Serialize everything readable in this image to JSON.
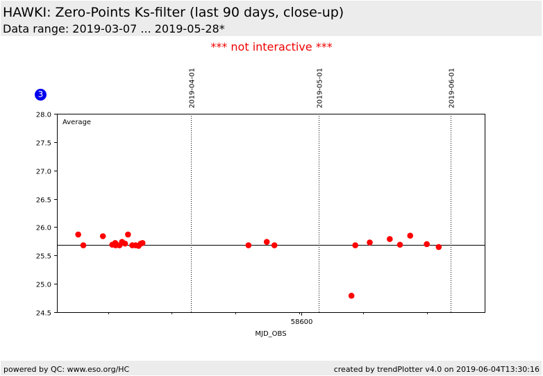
{
  "header": {
    "title": "HAWKI: Zero-Points Ks-filter (last 90 days, close-up)",
    "subtitle": "Data range: 2019-03-07 ... 2019-05-28*"
  },
  "notice": "*** not interactive ***",
  "badge": "3",
  "footer": {
    "left": "powered by QC: www.eso.org/HC",
    "right": "created by trendPlotter v4.0 on 2019-06-04T13:30:16"
  },
  "colors": {
    "points": "#ff0000",
    "badge": "#0000ee",
    "notice": "#ee0000",
    "header_bg": "#ececec"
  },
  "chart_data": {
    "type": "scatter",
    "xlabel": "MJD_OBS",
    "ylabel": "",
    "xlim": [
      58542.5,
      58643.0
    ],
    "ylim": [
      24.5,
      28.0
    ],
    "yticks": [
      24.5,
      25.0,
      25.5,
      26.0,
      26.5,
      27.0,
      27.5,
      28.0
    ],
    "xticks_minor": [
      58554.5,
      58569.5,
      58584.5,
      58599.5,
      58614.5,
      58629.5
    ],
    "xtick_labels": [
      {
        "value": 58600,
        "label": "58600"
      }
    ],
    "date_markers": [
      {
        "value": 58574.0,
        "label": "2019-04-01"
      },
      {
        "value": 58604.0,
        "label": "2019-05-01"
      },
      {
        "value": 58635.0,
        "label": "2019-06-01"
      }
    ],
    "average": {
      "label": "Average",
      "value": 25.69
    },
    "series": [
      {
        "points": [
          {
            "x": 58547.5,
            "y": 25.87
          },
          {
            "x": 58548.7,
            "y": 25.68
          },
          {
            "x": 58553.3,
            "y": 25.84
          },
          {
            "x": 58555.5,
            "y": 25.69
          },
          {
            "x": 58556.2,
            "y": 25.72
          },
          {
            "x": 58556.3,
            "y": 25.68
          },
          {
            "x": 58557.2,
            "y": 25.68
          },
          {
            "x": 58557.8,
            "y": 25.74
          },
          {
            "x": 58558.5,
            "y": 25.71
          },
          {
            "x": 58559.2,
            "y": 25.87
          },
          {
            "x": 58560.2,
            "y": 25.68
          },
          {
            "x": 58561.0,
            "y": 25.68
          },
          {
            "x": 58561.7,
            "y": 25.67
          },
          {
            "x": 58562.2,
            "y": 25.71
          },
          {
            "x": 58562.6,
            "y": 25.72
          },
          {
            "x": 58587.5,
            "y": 25.68
          },
          {
            "x": 58591.8,
            "y": 25.74
          },
          {
            "x": 58593.6,
            "y": 25.68
          },
          {
            "x": 58611.7,
            "y": 24.79
          },
          {
            "x": 58612.6,
            "y": 25.68
          },
          {
            "x": 58616.0,
            "y": 25.73
          },
          {
            "x": 58620.7,
            "y": 25.79
          },
          {
            "x": 58623.1,
            "y": 25.69
          },
          {
            "x": 58625.5,
            "y": 25.85
          },
          {
            "x": 58629.4,
            "y": 25.7
          },
          {
            "x": 58632.2,
            "y": 25.65
          }
        ]
      }
    ]
  }
}
